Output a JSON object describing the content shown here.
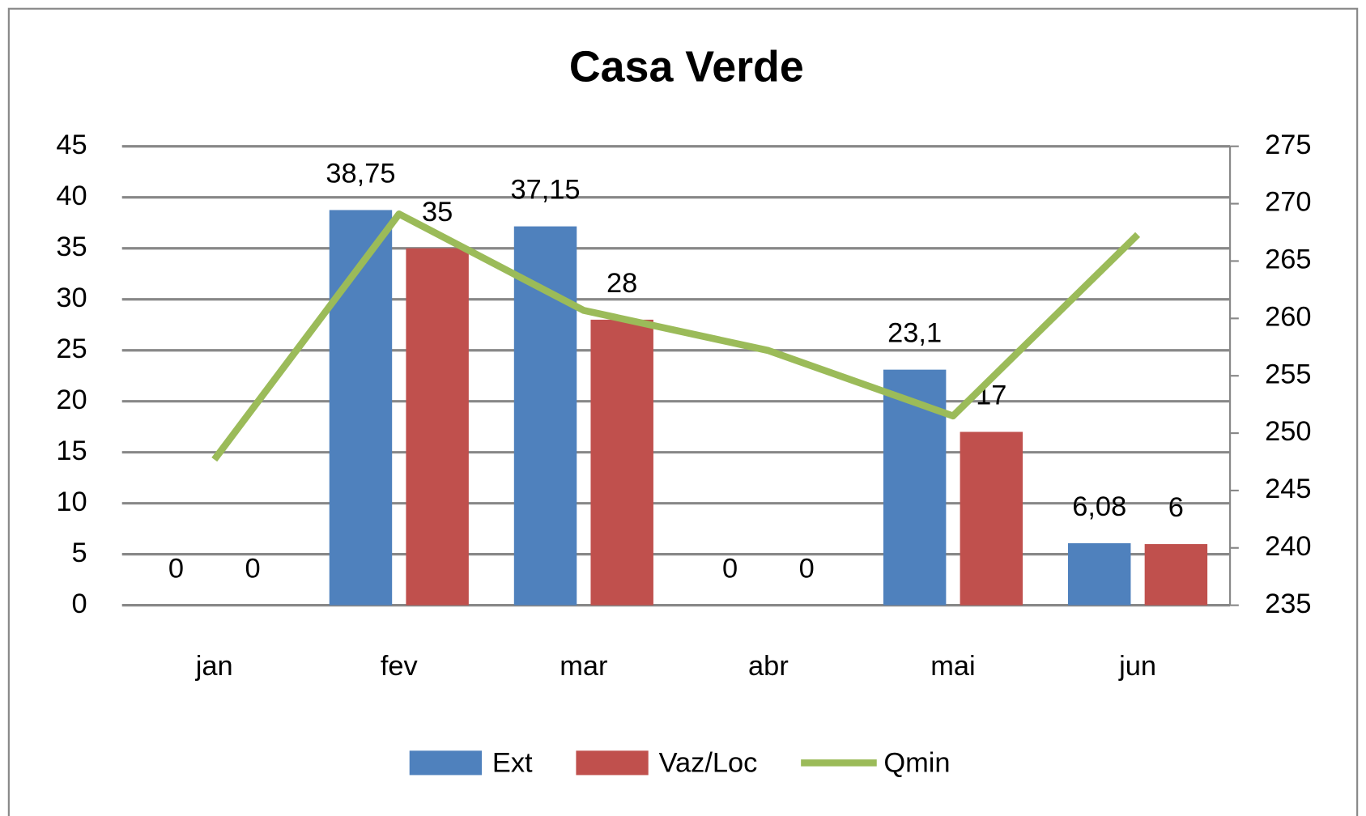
{
  "chart_data": {
    "type": "bar-line",
    "title": "Casa Verde",
    "categories": [
      "jan",
      "fev",
      "mar",
      "abr",
      "mai",
      "jun"
    ],
    "series": [
      {
        "name": "Ext",
        "type": "bar",
        "color": "#4f81bd",
        "values": [
          0,
          38.75,
          37.15,
          0,
          23.1,
          6.08
        ],
        "value_labels": [
          "0",
          "38,75",
          "37,15",
          "0",
          "23,1",
          "6,08"
        ]
      },
      {
        "name": "Vaz/Loc",
        "type": "bar",
        "color": "#c0504d",
        "values": [
          0,
          35,
          28,
          0,
          17,
          6
        ]
      },
      {
        "name": "Qmin",
        "type": "line",
        "axis": "y2",
        "color": "#9bbb59",
        "values": [
          247.7,
          269.1,
          260.7,
          257.2,
          251.5,
          267.3
        ]
      }
    ],
    "ylim": [
      0,
      45
    ],
    "yticks": [
      0,
      5,
      10,
      15,
      20,
      25,
      30,
      35,
      40,
      45
    ],
    "y2lim": [
      235,
      275
    ],
    "y2ticks": [
      235,
      240,
      245,
      250,
      255,
      260,
      265,
      270,
      275
    ],
    "grid": true,
    "legend": "bottom"
  }
}
